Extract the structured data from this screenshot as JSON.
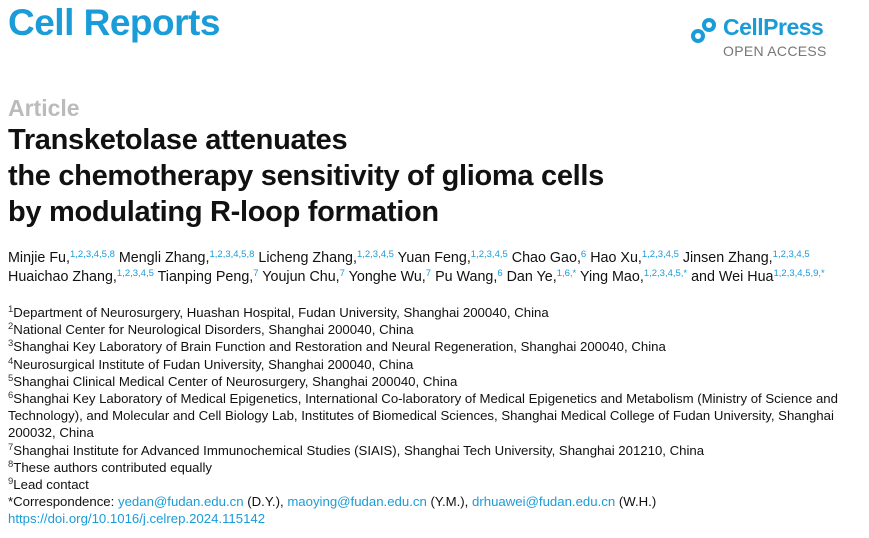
{
  "journal": "Cell Reports",
  "publisher": {
    "name": "CellPress",
    "access": "OPEN ACCESS"
  },
  "article_type": "Article",
  "title": [
    "Transketolase attenuates",
    "the chemotherapy sensitivity of glioma cells",
    "by modulating R-loop formation"
  ],
  "authors": [
    {
      "name": "Minjie Fu,",
      "affil": "1,2,3,4,5,8"
    },
    {
      "name": "Mengli Zhang,",
      "affil": "1,2,3,4,5,8"
    },
    {
      "name": "Licheng Zhang,",
      "affil": "1,2,3,4,5"
    },
    {
      "name": "Yuan Feng,",
      "affil": "1,2,3,4,5"
    },
    {
      "name": "Chao Gao,",
      "affil": "6"
    },
    {
      "name": "Hao Xu,",
      "affil": "1,2,3,4,5"
    },
    {
      "name": "Jinsen Zhang,",
      "affil": "1,2,3,4,5"
    },
    {
      "name": "Huaichao Zhang,",
      "affil": "1,2,3,4,5"
    },
    {
      "name": "Tianping Peng,",
      "affil": "7"
    },
    {
      "name": "Youjun Chu,",
      "affil": "7"
    },
    {
      "name": "Yonghe Wu,",
      "affil": "7"
    },
    {
      "name": "Pu Wang,",
      "affil": "6"
    },
    {
      "name": "Dan Ye,",
      "affil": "1,6,*"
    },
    {
      "name": "Ying Mao,",
      "affil": "1,2,3,4,5,*"
    },
    {
      "name": "and Wei Hua",
      "affil": "1,2,3,4,5,9,*"
    }
  ],
  "affiliations": [
    {
      "mark": "1",
      "text": "Department of Neurosurgery, Huashan Hospital, Fudan University, Shanghai 200040, China"
    },
    {
      "mark": "2",
      "text": "National Center for Neurological Disorders, Shanghai 200040, China"
    },
    {
      "mark": "3",
      "text": "Shanghai Key Laboratory of Brain Function and Restoration and Neural Regeneration, Shanghai 200040, China"
    },
    {
      "mark": "4",
      "text": "Neurosurgical Institute of Fudan University, Shanghai 200040, China"
    },
    {
      "mark": "5",
      "text": "Shanghai Clinical Medical Center of Neurosurgery, Shanghai 200040, China"
    },
    {
      "mark": "6",
      "text": "Shanghai Key Laboratory of Medical Epigenetics, International Co-laboratory of Medical Epigenetics and Metabolism (Ministry of Science and Technology), and Molecular and Cell Biology Lab, Institutes of Biomedical Sciences, Shanghai Medical College of Fudan University, Shanghai 200032, China"
    },
    {
      "mark": "7",
      "text": "Shanghai Institute for Advanced Immunochemical Studies (SIAIS), Shanghai Tech University, Shanghai 201210, China"
    },
    {
      "mark": "8",
      "text": "These authors contributed equally"
    },
    {
      "mark": "9",
      "text": "Lead contact"
    }
  ],
  "correspondence": {
    "label": "*Correspondence:",
    "contacts": [
      {
        "email": "yedan@fudan.edu.cn",
        "initials": "(D.Y.),"
      },
      {
        "email": "maoying@fudan.edu.cn",
        "initials": "(Y.M.),"
      },
      {
        "email": "drhuawei@fudan.edu.cn",
        "initials": "(W.H.)"
      }
    ]
  },
  "doi": "https://doi.org/10.1016/j.celrep.2024.115142"
}
